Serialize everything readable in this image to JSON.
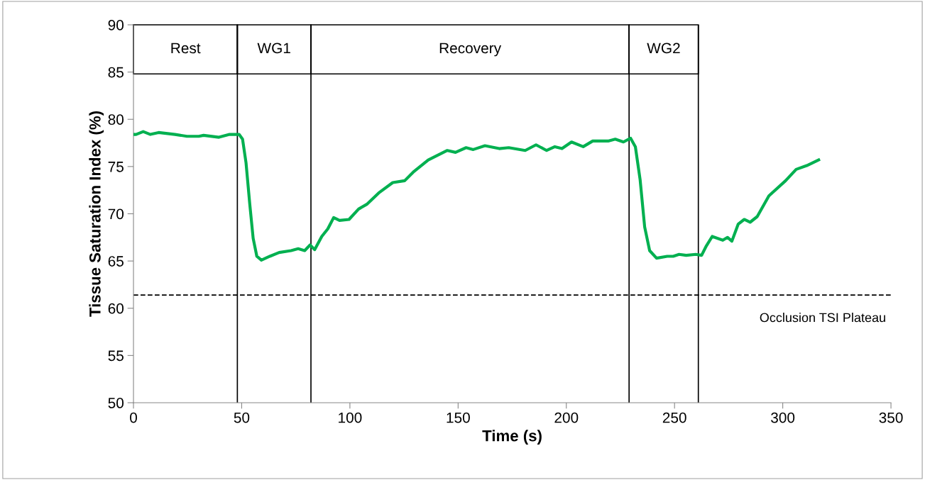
{
  "chart_data": {
    "type": "line",
    "xlabel": "Time (s)",
    "ylabel": "Tissue Saturation Index (%)",
    "xlim": [
      0,
      350
    ],
    "xticks": [
      0,
      50,
      100,
      150,
      200,
      250,
      300,
      350
    ],
    "ylim": [
      50,
      90
    ],
    "yticks": [
      50,
      55,
      60,
      65,
      70,
      75,
      80,
      85,
      90
    ],
    "grid": false,
    "legend": false,
    "marker": "none",
    "line_style": "solid",
    "series": [
      {
        "color": "#00b050",
        "x": [
          0,
          1.2,
          4.5,
          7.8,
          11.6,
          19.2,
          24.7,
          30.2,
          32.4,
          39.5,
          44.4,
          48.8,
          50.4,
          52.0,
          53.7,
          55.3,
          57.0,
          59.1,
          63.0,
          67.3,
          72.8,
          76.1,
          79.1,
          81.6,
          83.7,
          87.0,
          89.8,
          92.5,
          95.2,
          99.6,
          104.0,
          107.8,
          113.3,
          119.8,
          125.3,
          129.7,
          136.2,
          145.0,
          148.8,
          153.7,
          157.0,
          162.4,
          169.0,
          173.4,
          181.0,
          186.0,
          190.9,
          194.7,
          198.0,
          202.4,
          207.8,
          212.2,
          219.3,
          222.6,
          226.4,
          229.7,
          231.9,
          234.1,
          236.2,
          238.5,
          241.7,
          246.6,
          249.4,
          252.1,
          255.4,
          259.8,
          262.5,
          264.7,
          267.4,
          272.3,
          274.5,
          276.5,
          279.4,
          282.2,
          284.9,
          288.2,
          293.6,
          301.3,
          306.2,
          311.1,
          316.6
        ],
        "values": [
          78.4,
          78.4,
          78.7,
          78.4,
          78.6,
          78.4,
          78.2,
          78.2,
          78.3,
          78.1,
          78.4,
          78.4,
          77.9,
          75.4,
          71.1,
          67.4,
          65.5,
          65.1,
          65.5,
          65.9,
          66.1,
          66.3,
          66.1,
          66.7,
          66.2,
          67.6,
          68.4,
          69.6,
          69.3,
          69.4,
          70.5,
          71.0,
          72.2,
          73.3,
          73.5,
          74.5,
          75.7,
          76.7,
          76.5,
          77.0,
          76.8,
          77.2,
          76.9,
          77.0,
          76.7,
          77.3,
          76.7,
          77.1,
          76.9,
          77.6,
          77.1,
          77.7,
          77.7,
          77.9,
          77.6,
          78.0,
          77.1,
          73.6,
          68.6,
          66.1,
          65.3,
          65.5,
          65.5,
          65.7,
          65.6,
          65.7,
          65.6,
          66.6,
          67.6,
          67.2,
          67.5,
          67.1,
          68.9,
          69.4,
          69.1,
          69.7,
          71.9,
          73.5,
          74.7,
          75.1,
          75.7
        ]
      }
    ],
    "ref_lines": [
      {
        "axis": "y",
        "value": 61.4,
        "label": "Occlusion TSI Plateau",
        "color": "#000000",
        "line_style": "dashed"
      },
      {
        "axis": "x",
        "value": 48,
        "color": "#000000",
        "line_style": "solid"
      },
      {
        "axis": "x",
        "value": 82,
        "color": "#000000",
        "line_style": "solid"
      },
      {
        "axis": "x",
        "value": 229,
        "color": "#000000",
        "line_style": "solid"
      },
      {
        "axis": "x",
        "value": 261,
        "color": "#000000",
        "line_style": "solid"
      }
    ],
    "annotations": [
      "Rest",
      "WG1",
      "Recovery",
      "WG2"
    ]
  }
}
